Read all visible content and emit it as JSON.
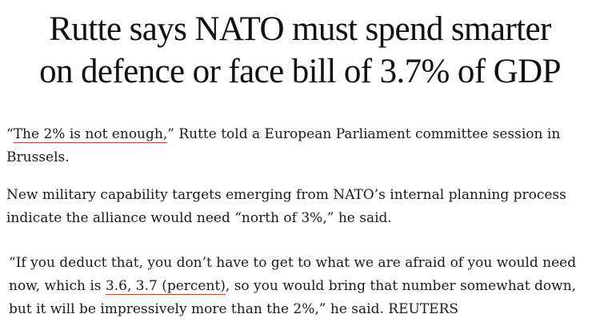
{
  "article": {
    "headline_line1": "Rutte says NATO must spend smarter",
    "headline_line2": "on defence or face bill of 3.7% of GDP",
    "p1": {
      "open_quote": "“",
      "link": "The 2% is not enough,",
      "rest": "” Rutte told a European Parliament committee session in Brussels."
    },
    "p2": {
      "text": "New military capability targets emerging from NATO’s internal planning process indicate the alliance would need “north of 3%,” he said."
    },
    "p3": {
      "before": "“If you deduct that, you don’t have to get to what we are afraid of you would need now, which is ",
      "link": "3.6, 3.7 (percent)",
      "after": ", so you would bring that number somewhat down, but it will be impressively more than the 2%,” he said. REUTERS"
    },
    "colors": {
      "link_underline": "#c8442b",
      "text": "#1a1a1a"
    }
  }
}
